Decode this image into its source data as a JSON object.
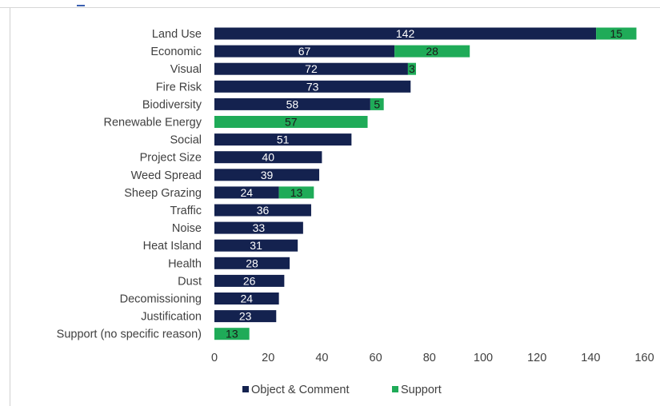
{
  "colors": {
    "object_comment": "#14224f",
    "support": "#1fab58"
  },
  "legend": {
    "object_comment": "Object & Comment",
    "support": "Support"
  },
  "chart_data": {
    "type": "bar",
    "orientation": "horizontal",
    "stacked": true,
    "categories": [
      "Land Use",
      "Economic",
      "Visual",
      "Fire Risk",
      "Biodiversity",
      "Renewable Energy",
      "Social",
      "Project Size",
      "Weed Spread",
      "Sheep Grazing",
      "Traffic",
      "Noise",
      "Heat Island",
      "Health",
      "Dust",
      "Decomissioning",
      "Justification",
      "Support (no specific reason)"
    ],
    "series": [
      {
        "name": "Object & Comment",
        "values": [
          142,
          67,
          72,
          73,
          58,
          0,
          51,
          40,
          39,
          24,
          36,
          33,
          31,
          28,
          26,
          24,
          23,
          0
        ]
      },
      {
        "name": "Support",
        "values": [
          15,
          28,
          3,
          0,
          5,
          57,
          0,
          0,
          0,
          13,
          0,
          0,
          0,
          0,
          0,
          0,
          0,
          13
        ]
      }
    ],
    "xlim": [
      0,
      160
    ],
    "xticks": [
      0,
      20,
      40,
      60,
      80,
      100,
      120,
      140,
      160
    ],
    "grid": false,
    "legend_position": "bottom"
  }
}
